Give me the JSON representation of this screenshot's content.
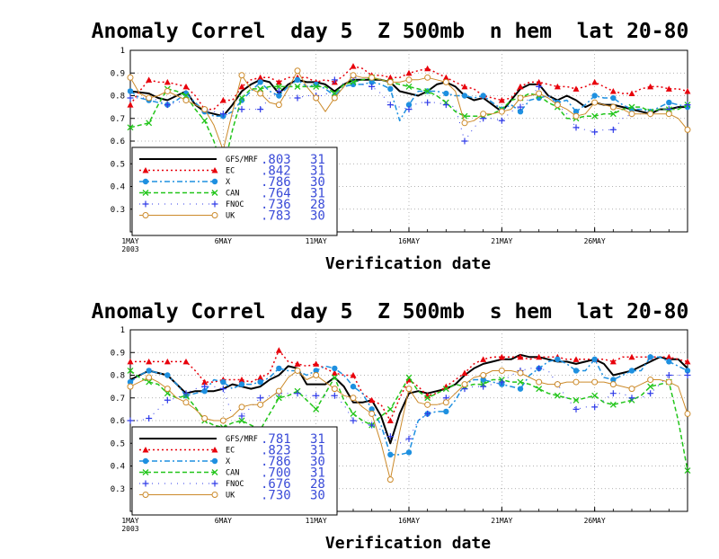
{
  "colors": {
    "GFS/MRF": "#000000",
    "EC": "#e8000b",
    "X": "#1e90e0",
    "CAN": "#22c51a",
    "FNOC": "#2f3be8",
    "UK": "#cc8a2a",
    "stats_text": "#3a4bd8",
    "grid": "#9a9a9a"
  },
  "chart_data": [
    {
      "type": "line",
      "title": "Anomaly Correl  day 5  Z 500mb  n hem  lat 20-80",
      "xlabel": "Verification date",
      "ylabel": "",
      "ylim": [
        0.2,
        1.0
      ],
      "xlim": [
        1,
        31
      ],
      "grid": true,
      "legend_position": "bottom-left",
      "x_ticks": [
        {
          "x": 1,
          "label": "1MAY"
        },
        {
          "x": 6,
          "label": "6MAY"
        },
        {
          "x": 11,
          "label": "11MAY"
        },
        {
          "x": 16,
          "label": "16MAY"
        },
        {
          "x": 21,
          "label": "21MAY"
        },
        {
          "x": 26,
          "label": "26MAY"
        }
      ],
      "year_label": "2003",
      "y_ticks": [
        "0.3",
        "0.4",
        "0.5",
        "0.6",
        "0.7",
        "0.8",
        "0.9",
        "1"
      ],
      "x": [
        1,
        1.5,
        2,
        2.5,
        3,
        3.5,
        4,
        4.5,
        5,
        5.5,
        6,
        6.5,
        7,
        7.5,
        8,
        8.5,
        9,
        9.5,
        10,
        10.5,
        11,
        11.5,
        12,
        12.5,
        13,
        13.5,
        14,
        14.5,
        15,
        15.5,
        16,
        16.5,
        17,
        17.5,
        18,
        18.5,
        19,
        19.5,
        20,
        20.5,
        21,
        21.5,
        22,
        22.5,
        23,
        23.5,
        24,
        24.5,
        25,
        25.5,
        26,
        26.5,
        27,
        27.5,
        28,
        28.5,
        29,
        29.5,
        30,
        30.5,
        31
      ],
      "series": [
        {
          "name": "GFS/MRF",
          "marker": "none",
          "dash": "solid",
          "mean": ".803",
          "count": "31",
          "values": [
            0.82,
            0.815,
            0.81,
            0.79,
            0.78,
            0.8,
            0.82,
            0.76,
            0.73,
            0.72,
            0.71,
            0.76,
            0.82,
            0.85,
            0.87,
            0.86,
            0.81,
            0.85,
            0.87,
            0.86,
            0.86,
            0.85,
            0.82,
            0.85,
            0.87,
            0.87,
            0.87,
            0.87,
            0.86,
            0.82,
            0.81,
            0.8,
            0.82,
            0.85,
            0.86,
            0.84,
            0.8,
            0.78,
            0.79,
            0.76,
            0.73,
            0.78,
            0.83,
            0.85,
            0.85,
            0.8,
            0.78,
            0.8,
            0.78,
            0.75,
            0.77,
            0.76,
            0.76,
            0.75,
            0.74,
            0.73,
            0.72,
            0.74,
            0.74,
            0.75,
            0.75
          ]
        },
        {
          "name": "EC",
          "marker": "triangle",
          "dash": "dotted",
          "mean": ".842",
          "count": "31",
          "values": [
            0.76,
            0.82,
            0.87,
            0.86,
            0.86,
            0.85,
            0.84,
            0.8,
            0.74,
            0.74,
            0.78,
            0.78,
            0.84,
            0.87,
            0.88,
            0.88,
            0.86,
            0.88,
            0.88,
            0.88,
            0.86,
            0.87,
            0.86,
            0.89,
            0.93,
            0.92,
            0.89,
            0.89,
            0.88,
            0.88,
            0.9,
            0.91,
            0.92,
            0.9,
            0.88,
            0.86,
            0.84,
            0.83,
            0.8,
            0.79,
            0.78,
            0.79,
            0.84,
            0.86,
            0.86,
            0.85,
            0.84,
            0.84,
            0.83,
            0.84,
            0.86,
            0.84,
            0.82,
            0.81,
            0.81,
            0.83,
            0.84,
            0.84,
            0.83,
            0.83,
            0.82
          ]
        },
        {
          "name": "X",
          "marker": "circle",
          "dash": "dashdot",
          "mean": ".786",
          "count": "30",
          "values": [
            0.82,
            0.79,
            0.78,
            0.77,
            0.76,
            0.78,
            0.81,
            0.77,
            0.73,
            0.71,
            0.71,
            0.73,
            0.78,
            0.82,
            0.86,
            0.82,
            0.8,
            0.84,
            0.87,
            0.84,
            0.85,
            0.83,
            0.8,
            0.84,
            0.85,
            0.85,
            0.86,
            0.85,
            0.83,
            0.69,
            0.76,
            0.82,
            0.82,
            0.82,
            0.81,
            0.8,
            0.8,
            0.79,
            0.8,
            0.77,
            0.74,
            0.76,
            0.73,
            0.78,
            0.79,
            0.8,
            0.77,
            0.78,
            0.73,
            0.76,
            0.8,
            0.79,
            0.79,
            0.76,
            0.74,
            0.74,
            0.73,
            0.75,
            0.77,
            0.76,
            0.75
          ]
        },
        {
          "name": "CAN",
          "marker": "x",
          "dash": "dashed",
          "mean": ".764",
          "count": "31",
          "values": [
            0.66,
            0.67,
            0.68,
            0.76,
            0.83,
            0.82,
            0.8,
            0.74,
            0.69,
            0.6,
            0.47,
            0.65,
            0.79,
            0.83,
            0.83,
            0.84,
            0.84,
            0.84,
            0.84,
            0.84,
            0.84,
            0.84,
            0.81,
            0.85,
            0.86,
            0.87,
            0.88,
            0.87,
            0.86,
            0.85,
            0.84,
            0.83,
            0.82,
            0.8,
            0.77,
            0.73,
            0.71,
            0.71,
            0.71,
            0.72,
            0.74,
            0.78,
            0.79,
            0.81,
            0.8,
            0.77,
            0.75,
            0.7,
            0.7,
            0.71,
            0.71,
            0.72,
            0.72,
            0.74,
            0.75,
            0.75,
            0.73,
            0.74,
            0.74,
            0.74,
            0.76
          ]
        },
        {
          "name": "FNOC",
          "marker": "plus",
          "dash": "dotted-sparse",
          "mean": ".736",
          "count": "28",
          "values": [
            0.79,
            0.79,
            0.79,
            0.78,
            0.76,
            0.77,
            0.78,
            0.76,
            0.74,
            0.73,
            0.72,
            0.71,
            0.74,
            0.74,
            0.74,
            0.79,
            0.82,
            0.79,
            0.79,
            0.8,
            0.8,
            0.8,
            0.87,
            0.85,
            0.88,
            0.85,
            0.84,
            0.81,
            0.76,
            0.75,
            0.74,
            0.77,
            0.77,
            0.77,
            0.76,
            0.75,
            0.6,
            0.66,
            0.7,
            0.7,
            0.69,
            0.73,
            0.75,
            0.79,
            0.84,
            0.8,
            0.76,
            0.72,
            0.66,
            0.65,
            0.64,
            0.65,
            0.65,
            0.7,
            0.72,
            0.72,
            0.72,
            0.74,
            0.74,
            0.75,
            0.76
          ]
        },
        {
          "name": "UK",
          "marker": "diamond",
          "dash": "solid-thin",
          "mean": ".783",
          "count": "30",
          "values": [
            0.88,
            0.81,
            0.79,
            0.8,
            0.82,
            0.8,
            0.78,
            0.76,
            0.74,
            0.67,
            0.56,
            0.73,
            0.89,
            0.83,
            0.81,
            0.77,
            0.76,
            0.83,
            0.91,
            0.84,
            0.79,
            0.73,
            0.79,
            0.84,
            0.89,
            0.88,
            0.88,
            0.87,
            0.86,
            0.86,
            0.87,
            0.87,
            0.88,
            0.87,
            0.86,
            0.82,
            0.68,
            0.69,
            0.72,
            0.72,
            0.73,
            0.74,
            0.79,
            0.8,
            0.81,
            0.79,
            0.76,
            0.74,
            0.71,
            0.72,
            0.77,
            0.76,
            0.75,
            0.74,
            0.72,
            0.72,
            0.72,
            0.72,
            0.72,
            0.7,
            0.65
          ]
        }
      ]
    },
    {
      "type": "line",
      "title": "Anomaly Correl  day 5  Z 500mb  s hem  lat 20-80",
      "xlabel": "Verification date",
      "ylabel": "",
      "ylim": [
        0.2,
        1.0
      ],
      "xlim": [
        1,
        31
      ],
      "grid": true,
      "legend_position": "bottom-left",
      "x_ticks": [
        {
          "x": 1,
          "label": "1MAY"
        },
        {
          "x": 6,
          "label": "6MAY"
        },
        {
          "x": 11,
          "label": "11MAY"
        },
        {
          "x": 16,
          "label": "16MAY"
        },
        {
          "x": 21,
          "label": "21MAY"
        },
        {
          "x": 26,
          "label": "26MAY"
        }
      ],
      "year_label": "2003",
      "y_ticks": [
        "0.3",
        "0.4",
        "0.5",
        "0.6",
        "0.7",
        "0.8",
        "0.9",
        "1"
      ],
      "x": [
        1,
        1.5,
        2,
        2.5,
        3,
        3.5,
        4,
        4.5,
        5,
        5.5,
        6,
        6.5,
        7,
        7.5,
        8,
        8.5,
        9,
        9.5,
        10,
        10.5,
        11,
        11.5,
        12,
        12.5,
        13,
        13.5,
        14,
        14.5,
        15,
        15.5,
        16,
        16.5,
        17,
        17.5,
        18,
        18.5,
        19,
        19.5,
        20,
        20.5,
        21,
        21.5,
        22,
        22.5,
        23,
        23.5,
        24,
        24.5,
        25,
        25.5,
        26,
        26.5,
        27,
        27.5,
        28,
        28.5,
        29,
        29.5,
        30,
        30.5,
        31
      ],
      "series": [
        {
          "name": "GFS/MRF",
          "marker": "none",
          "dash": "solid",
          "mean": ".781",
          "count": "31",
          "values": [
            0.78,
            0.8,
            0.82,
            0.81,
            0.8,
            0.76,
            0.72,
            0.73,
            0.73,
            0.73,
            0.74,
            0.76,
            0.75,
            0.74,
            0.75,
            0.78,
            0.8,
            0.84,
            0.83,
            0.76,
            0.76,
            0.76,
            0.79,
            0.75,
            0.68,
            0.68,
            0.69,
            0.62,
            0.5,
            0.63,
            0.72,
            0.73,
            0.72,
            0.73,
            0.74,
            0.76,
            0.8,
            0.83,
            0.85,
            0.86,
            0.87,
            0.87,
            0.89,
            0.88,
            0.88,
            0.87,
            0.86,
            0.86,
            0.85,
            0.86,
            0.87,
            0.85,
            0.8,
            0.81,
            0.82,
            0.84,
            0.86,
            0.88,
            0.87,
            0.87,
            0.83
          ]
        },
        {
          "name": "EC",
          "marker": "triangle",
          "dash": "dotted",
          "mean": ".823",
          "count": "31",
          "values": [
            0.86,
            0.86,
            0.86,
            0.86,
            0.86,
            0.86,
            0.86,
            0.82,
            0.77,
            0.77,
            0.78,
            0.78,
            0.78,
            0.77,
            0.79,
            0.81,
            0.91,
            0.86,
            0.85,
            0.84,
            0.85,
            0.83,
            0.81,
            0.8,
            0.8,
            0.72,
            0.69,
            0.67,
            0.6,
            0.7,
            0.78,
            0.75,
            0.71,
            0.72,
            0.75,
            0.78,
            0.81,
            0.85,
            0.87,
            0.88,
            0.88,
            0.88,
            0.88,
            0.87,
            0.88,
            0.88,
            0.88,
            0.87,
            0.87,
            0.87,
            0.87,
            0.87,
            0.86,
            0.88,
            0.88,
            0.88,
            0.88,
            0.88,
            0.88,
            0.87,
            0.86
          ]
        },
        {
          "name": "X",
          "marker": "circle",
          "dash": "dashdot",
          "mean": ".786",
          "count": "30",
          "values": [
            0.77,
            0.8,
            0.82,
            0.81,
            0.8,
            0.76,
            0.71,
            0.72,
            0.73,
            0.78,
            0.77,
            0.74,
            0.76,
            0.76,
            0.77,
            0.79,
            0.83,
            0.82,
            0.82,
            0.8,
            0.82,
            0.84,
            0.83,
            0.8,
            0.75,
            0.72,
            0.65,
            0.58,
            0.45,
            0.45,
            0.46,
            0.6,
            0.63,
            0.64,
            0.64,
            0.69,
            0.76,
            0.78,
            0.78,
            0.77,
            0.76,
            0.75,
            0.74,
            0.8,
            0.83,
            0.86,
            0.87,
            0.85,
            0.82,
            0.82,
            0.87,
            0.79,
            0.78,
            0.8,
            0.82,
            0.82,
            0.88,
            0.88,
            0.86,
            0.84,
            0.82
          ]
        },
        {
          "name": "CAN",
          "marker": "x",
          "dash": "dashed",
          "mean": ".700",
          "count": "31",
          "values": [
            0.82,
            0.79,
            0.77,
            0.76,
            0.72,
            0.7,
            0.71,
            0.66,
            0.6,
            0.58,
            0.57,
            0.59,
            0.6,
            0.58,
            0.56,
            0.63,
            0.7,
            0.71,
            0.73,
            0.69,
            0.65,
            0.72,
            0.79,
            0.69,
            0.63,
            0.6,
            0.58,
            0.62,
            0.65,
            0.72,
            0.79,
            0.73,
            0.7,
            0.72,
            0.74,
            0.76,
            0.75,
            0.76,
            0.76,
            0.78,
            0.78,
            0.77,
            0.77,
            0.76,
            0.74,
            0.72,
            0.71,
            0.7,
            0.69,
            0.7,
            0.71,
            0.68,
            0.67,
            0.68,
            0.69,
            0.71,
            0.75,
            0.76,
            0.77,
            0.6,
            0.38
          ]
        },
        {
          "name": "FNOC",
          "marker": "plus",
          "dash": "dotted-sparse",
          "mean": ".676",
          "count": "28",
          "values": [
            0.6,
            0.6,
            0.61,
            0.65,
            0.69,
            0.7,
            0.72,
            0.74,
            0.75,
            0.75,
            0.74,
            0.62,
            0.62,
            0.66,
            0.7,
            0.71,
            0.72,
            0.72,
            0.72,
            0.71,
            0.71,
            0.71,
            0.71,
            0.67,
            0.6,
            0.59,
            0.58,
            0.56,
            0.53,
            0.5,
            0.52,
            0.6,
            0.63,
            0.66,
            0.7,
            0.72,
            0.74,
            0.75,
            0.75,
            0.76,
            0.77,
            0.8,
            0.82,
            0.83,
            0.83,
            0.82,
            0.76,
            0.7,
            0.65,
            0.66,
            0.66,
            0.69,
            0.72,
            0.72,
            0.7,
            0.7,
            0.72,
            0.76,
            0.8,
            0.8,
            0.8
          ]
        },
        {
          "name": "UK",
          "marker": "diamond",
          "dash": "solid-thin",
          "mean": ".730",
          "count": "30",
          "values": [
            0.75,
            0.77,
            0.79,
            0.77,
            0.74,
            0.7,
            0.68,
            0.65,
            0.61,
            0.6,
            0.6,
            0.62,
            0.66,
            0.67,
            0.67,
            0.7,
            0.73,
            0.79,
            0.82,
            0.78,
            0.8,
            0.77,
            0.74,
            0.71,
            0.7,
            0.66,
            0.63,
            0.5,
            0.34,
            0.55,
            0.74,
            0.68,
            0.67,
            0.67,
            0.68,
            0.72,
            0.76,
            0.79,
            0.8,
            0.82,
            0.82,
            0.82,
            0.81,
            0.79,
            0.77,
            0.76,
            0.76,
            0.77,
            0.77,
            0.77,
            0.77,
            0.77,
            0.76,
            0.75,
            0.74,
            0.76,
            0.78,
            0.78,
            0.77,
            0.75,
            0.63
          ]
        }
      ]
    }
  ]
}
